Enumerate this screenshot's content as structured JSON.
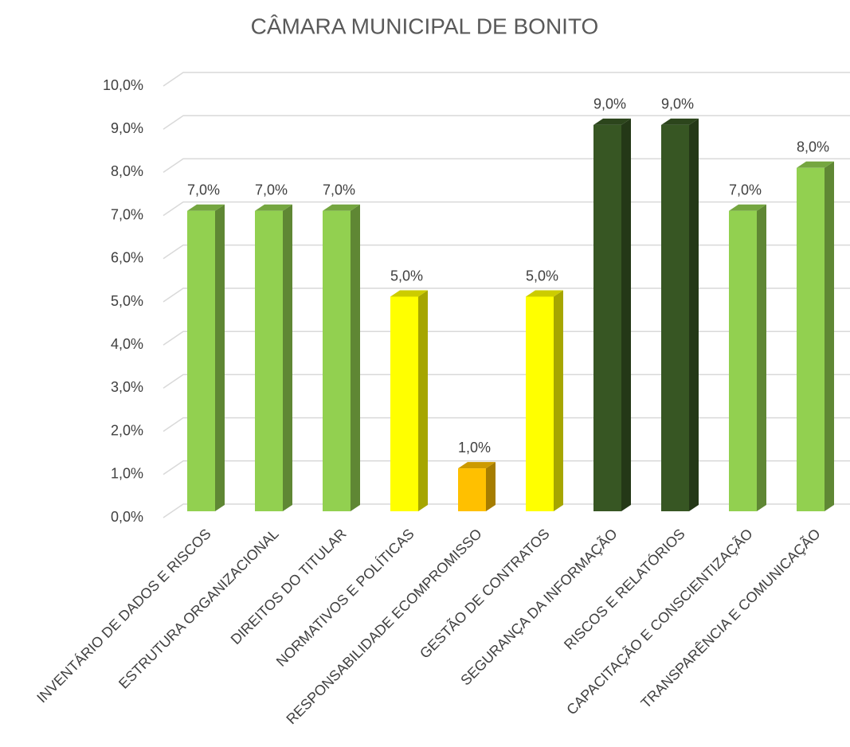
{
  "chart_data": {
    "type": "bar3d",
    "title": "CÂMARA MUNICIPAL DE BONITO",
    "categories": [
      "INVENTÁRIO DE DADOS E RISCOS",
      "ESTRUTURA ORGANIZACIONAL",
      "DIREITOS DO TITULAR",
      "NORMATIVOS E POLÍTICAS",
      "RESPONSABILIDADE ECOMPROMISSO",
      "GESTÃO DE CONTRATOS",
      "SEGURANÇA DA INFORMAÇÃO",
      "RISCOS E RELATÓRIOS",
      "CAPACITAÇÃO E CONSCIENTIZAÇÃO",
      "TRANSPARÊNCIA E COMUNICAÇÃO"
    ],
    "values": [
      7,
      7,
      7,
      5,
      1,
      5,
      9,
      9,
      7,
      8
    ],
    "value_labels": [
      "7,0%",
      "7,0%",
      "7,0%",
      "5,0%",
      "1,0%",
      "5,0%",
      "9,0%",
      "9,0%",
      "7,0%",
      "8,0%"
    ],
    "colors": [
      "#92d050",
      "#92d050",
      "#92d050",
      "#ffff00",
      "#ffc000",
      "#ffff00",
      "#375623",
      "#375623",
      "#92d050",
      "#92d050"
    ],
    "ylim": [
      0,
      10
    ],
    "yticks": [
      {
        "value": 0,
        "label": "0,0%"
      },
      {
        "value": 1,
        "label": "1,0%"
      },
      {
        "value": 2,
        "label": "2,0%"
      },
      {
        "value": 3,
        "label": "3,0%"
      },
      {
        "value": 4,
        "label": "4,0%"
      },
      {
        "value": 5,
        "label": "5,0%"
      },
      {
        "value": 6,
        "label": "6,0%"
      },
      {
        "value": 7,
        "label": "7,0%"
      },
      {
        "value": 8,
        "label": "8,0%"
      },
      {
        "value": 9,
        "label": "9,0%"
      },
      {
        "value": 10,
        "label": "10,0%"
      }
    ],
    "grid": true
  }
}
